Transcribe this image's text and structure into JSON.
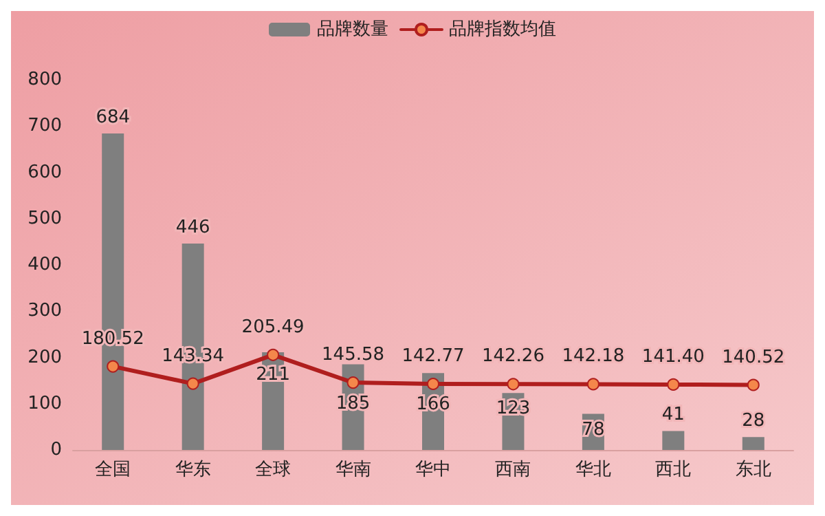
{
  "chart_data": {
    "type": "bar",
    "categories": [
      "全国",
      "华东",
      "全球",
      "华南",
      "华中",
      "西南",
      "华北",
      "西北",
      "东北"
    ],
    "series": [
      {
        "name": "品牌数量",
        "color": "#7f7f7f",
        "values": [
          684,
          446,
          211,
          185,
          166,
          123,
          78,
          41,
          28
        ]
      },
      {
        "name": "品牌指数均值",
        "type": "line",
        "color": "#b01e1e",
        "values": [
          180.52,
          143.34,
          205.49,
          145.58,
          142.77,
          142.26,
          142.18,
          141.4,
          140.52
        ],
        "value_labels": [
          "180.52",
          "143.34",
          "205.49",
          "145.58",
          "142.77",
          "142.26",
          "142.18",
          "141.40",
          "140.52"
        ]
      }
    ],
    "ylim": [
      0,
      800
    ],
    "yticks": [
      0,
      100,
      200,
      300,
      400,
      500,
      600,
      700,
      800
    ],
    "grid": false,
    "legend": "top",
    "data_labels": true,
    "marker": "circle",
    "line_style": "solid"
  }
}
